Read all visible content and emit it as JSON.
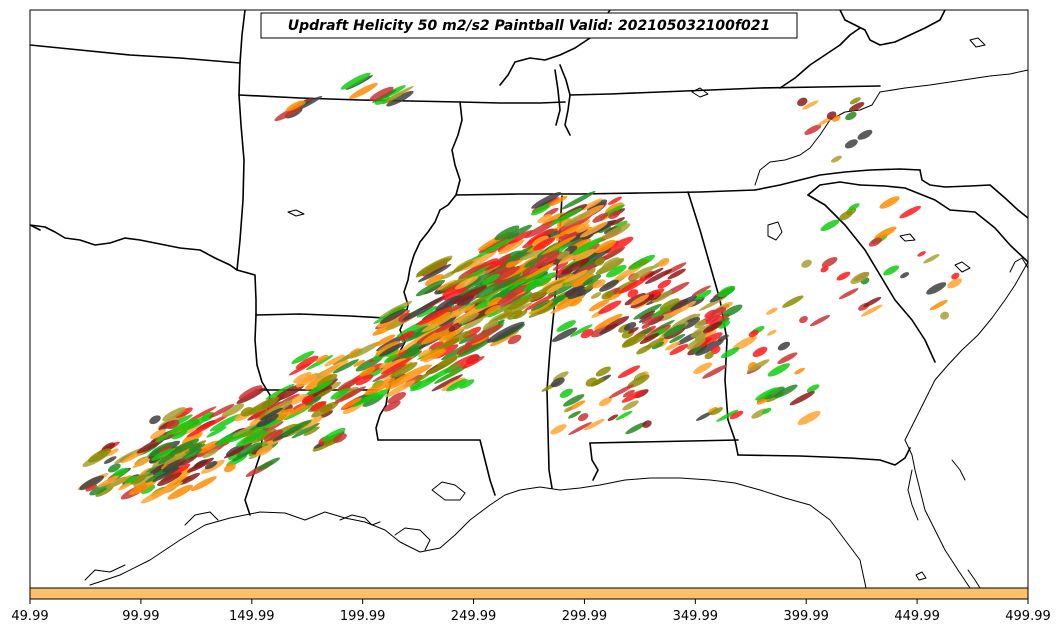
{
  "map": {
    "title": "Updraft Helicity 50 m2/s2 Paintball Valid: 202105032100f021",
    "member_colors": [
      "#ff1a1a",
      "#ff8c00",
      "#ffa52e",
      "#11cc11",
      "#228b22",
      "#8b1a1a",
      "#8b8b00",
      "#a8a030",
      "#404040",
      "#cc3333"
    ],
    "colorbar": {
      "color": "#ffc06b",
      "ticks": [
        "49.99",
        "99.99",
        "149.99",
        "199.99",
        "249.99",
        "299.99",
        "349.99",
        "399.99",
        "449.99",
        "499.99"
      ]
    }
  }
}
